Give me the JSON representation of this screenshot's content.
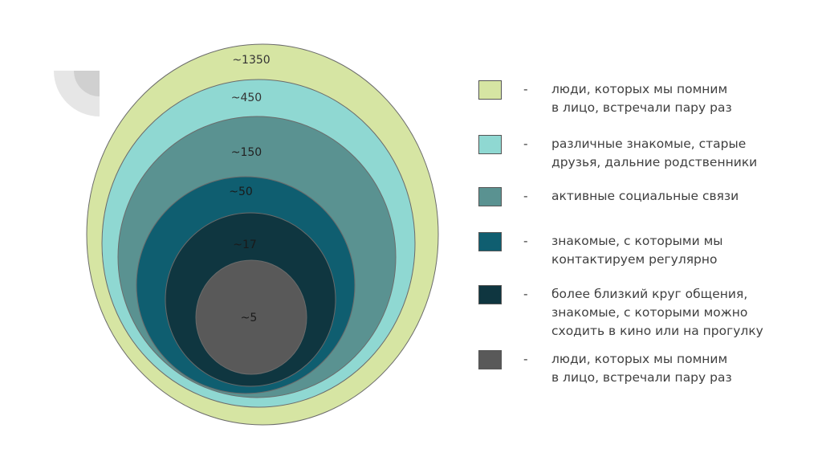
{
  "colors": {
    "ring_1350": "#d6e5a3",
    "ring_450": "#8fd8d2",
    "ring_150": "#5a9291",
    "ring_50": "#0f5e70",
    "ring_17": "#0f3640",
    "ring_5": "#595959",
    "stroke": "#6b6b6b",
    "deco_gray": "#e6e6e6"
  },
  "circles": [
    {
      "label": "~1350",
      "color_key": "ring_1350",
      "legend": "люди, которых мы помним\nв лицо, встречали пару раз"
    },
    {
      "label": "~450",
      "color_key": "ring_450",
      "legend": "различные знакомые, старые\nдрузья, дальние родственники"
    },
    {
      "label": "~150",
      "color_key": "ring_150",
      "legend": "активные социальные связи"
    },
    {
      "label": "~50",
      "color_key": "ring_50",
      "legend": "знакомые, с которыми мы\nконтактируем регулярно"
    },
    {
      "label": "~17",
      "color_key": "ring_17",
      "legend": "более близкий круг общения,\nзнакомые, с которыми можно\nсходить в кино или на прогулку"
    },
    {
      "label": "~5",
      "color_key": "ring_5",
      "legend": "люди, которых мы помним\nв лицо, встречали пару раз"
    }
  ],
  "legend_dash": "-"
}
